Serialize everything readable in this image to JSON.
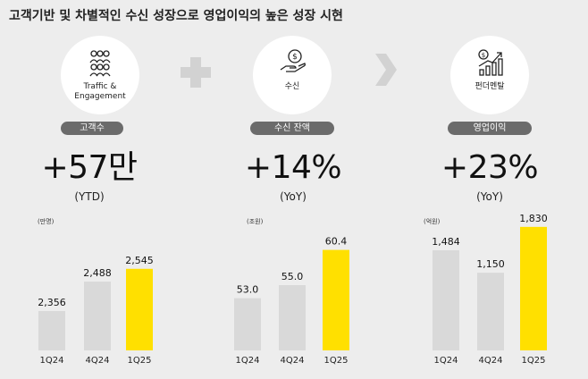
{
  "title": "고객기반 및 차별적인 수신 성장으로 영업이익의 높은 성장 시현",
  "colors": {
    "highlight": "#ffe000",
    "bar": "#d9d9d9",
    "pill": "#6b6b6b",
    "background": "#ededed"
  },
  "panels": [
    {
      "icon": "people-group-icon",
      "icon_label_line1": "Traffic &",
      "icon_label_line2": "Engagement",
      "pill_label": "고객수",
      "headline": "+57만",
      "headline_sub": "(YTD)",
      "unit": "(만명)"
    },
    {
      "icon": "hand-coin-icon",
      "icon_label_line1": "수신",
      "icon_label_line2": "",
      "pill_label": "수신 잔액",
      "headline": "+14%",
      "headline_sub": "(YoY)",
      "unit": "(조원)"
    },
    {
      "icon": "growth-chart-coin-icon",
      "icon_label_line1": "펀더멘탈",
      "icon_label_line2": "",
      "pill_label": "영업이익",
      "headline": "+23%",
      "headline_sub": "(YoY)",
      "unit": "(억원)"
    }
  ],
  "chart_data": [
    {
      "type": "bar",
      "categories": [
        "1Q24",
        "4Q24",
        "1Q25"
      ],
      "values": [
        2356,
        2488,
        2545
      ],
      "labels": [
        "2,356",
        "2,488",
        "2,545"
      ],
      "highlight_index": 2
    },
    {
      "type": "bar",
      "categories": [
        "1Q24",
        "4Q24",
        "1Q25"
      ],
      "values": [
        53.0,
        55.0,
        60.4
      ],
      "labels": [
        "53.0",
        "55.0",
        "60.4"
      ],
      "highlight_index": 2
    },
    {
      "type": "bar",
      "categories": [
        "1Q24",
        "4Q24",
        "1Q25"
      ],
      "values": [
        1484,
        1150,
        1830
      ],
      "labels": [
        "1,484",
        "1,150",
        "1,830"
      ],
      "highlight_index": 2
    }
  ]
}
